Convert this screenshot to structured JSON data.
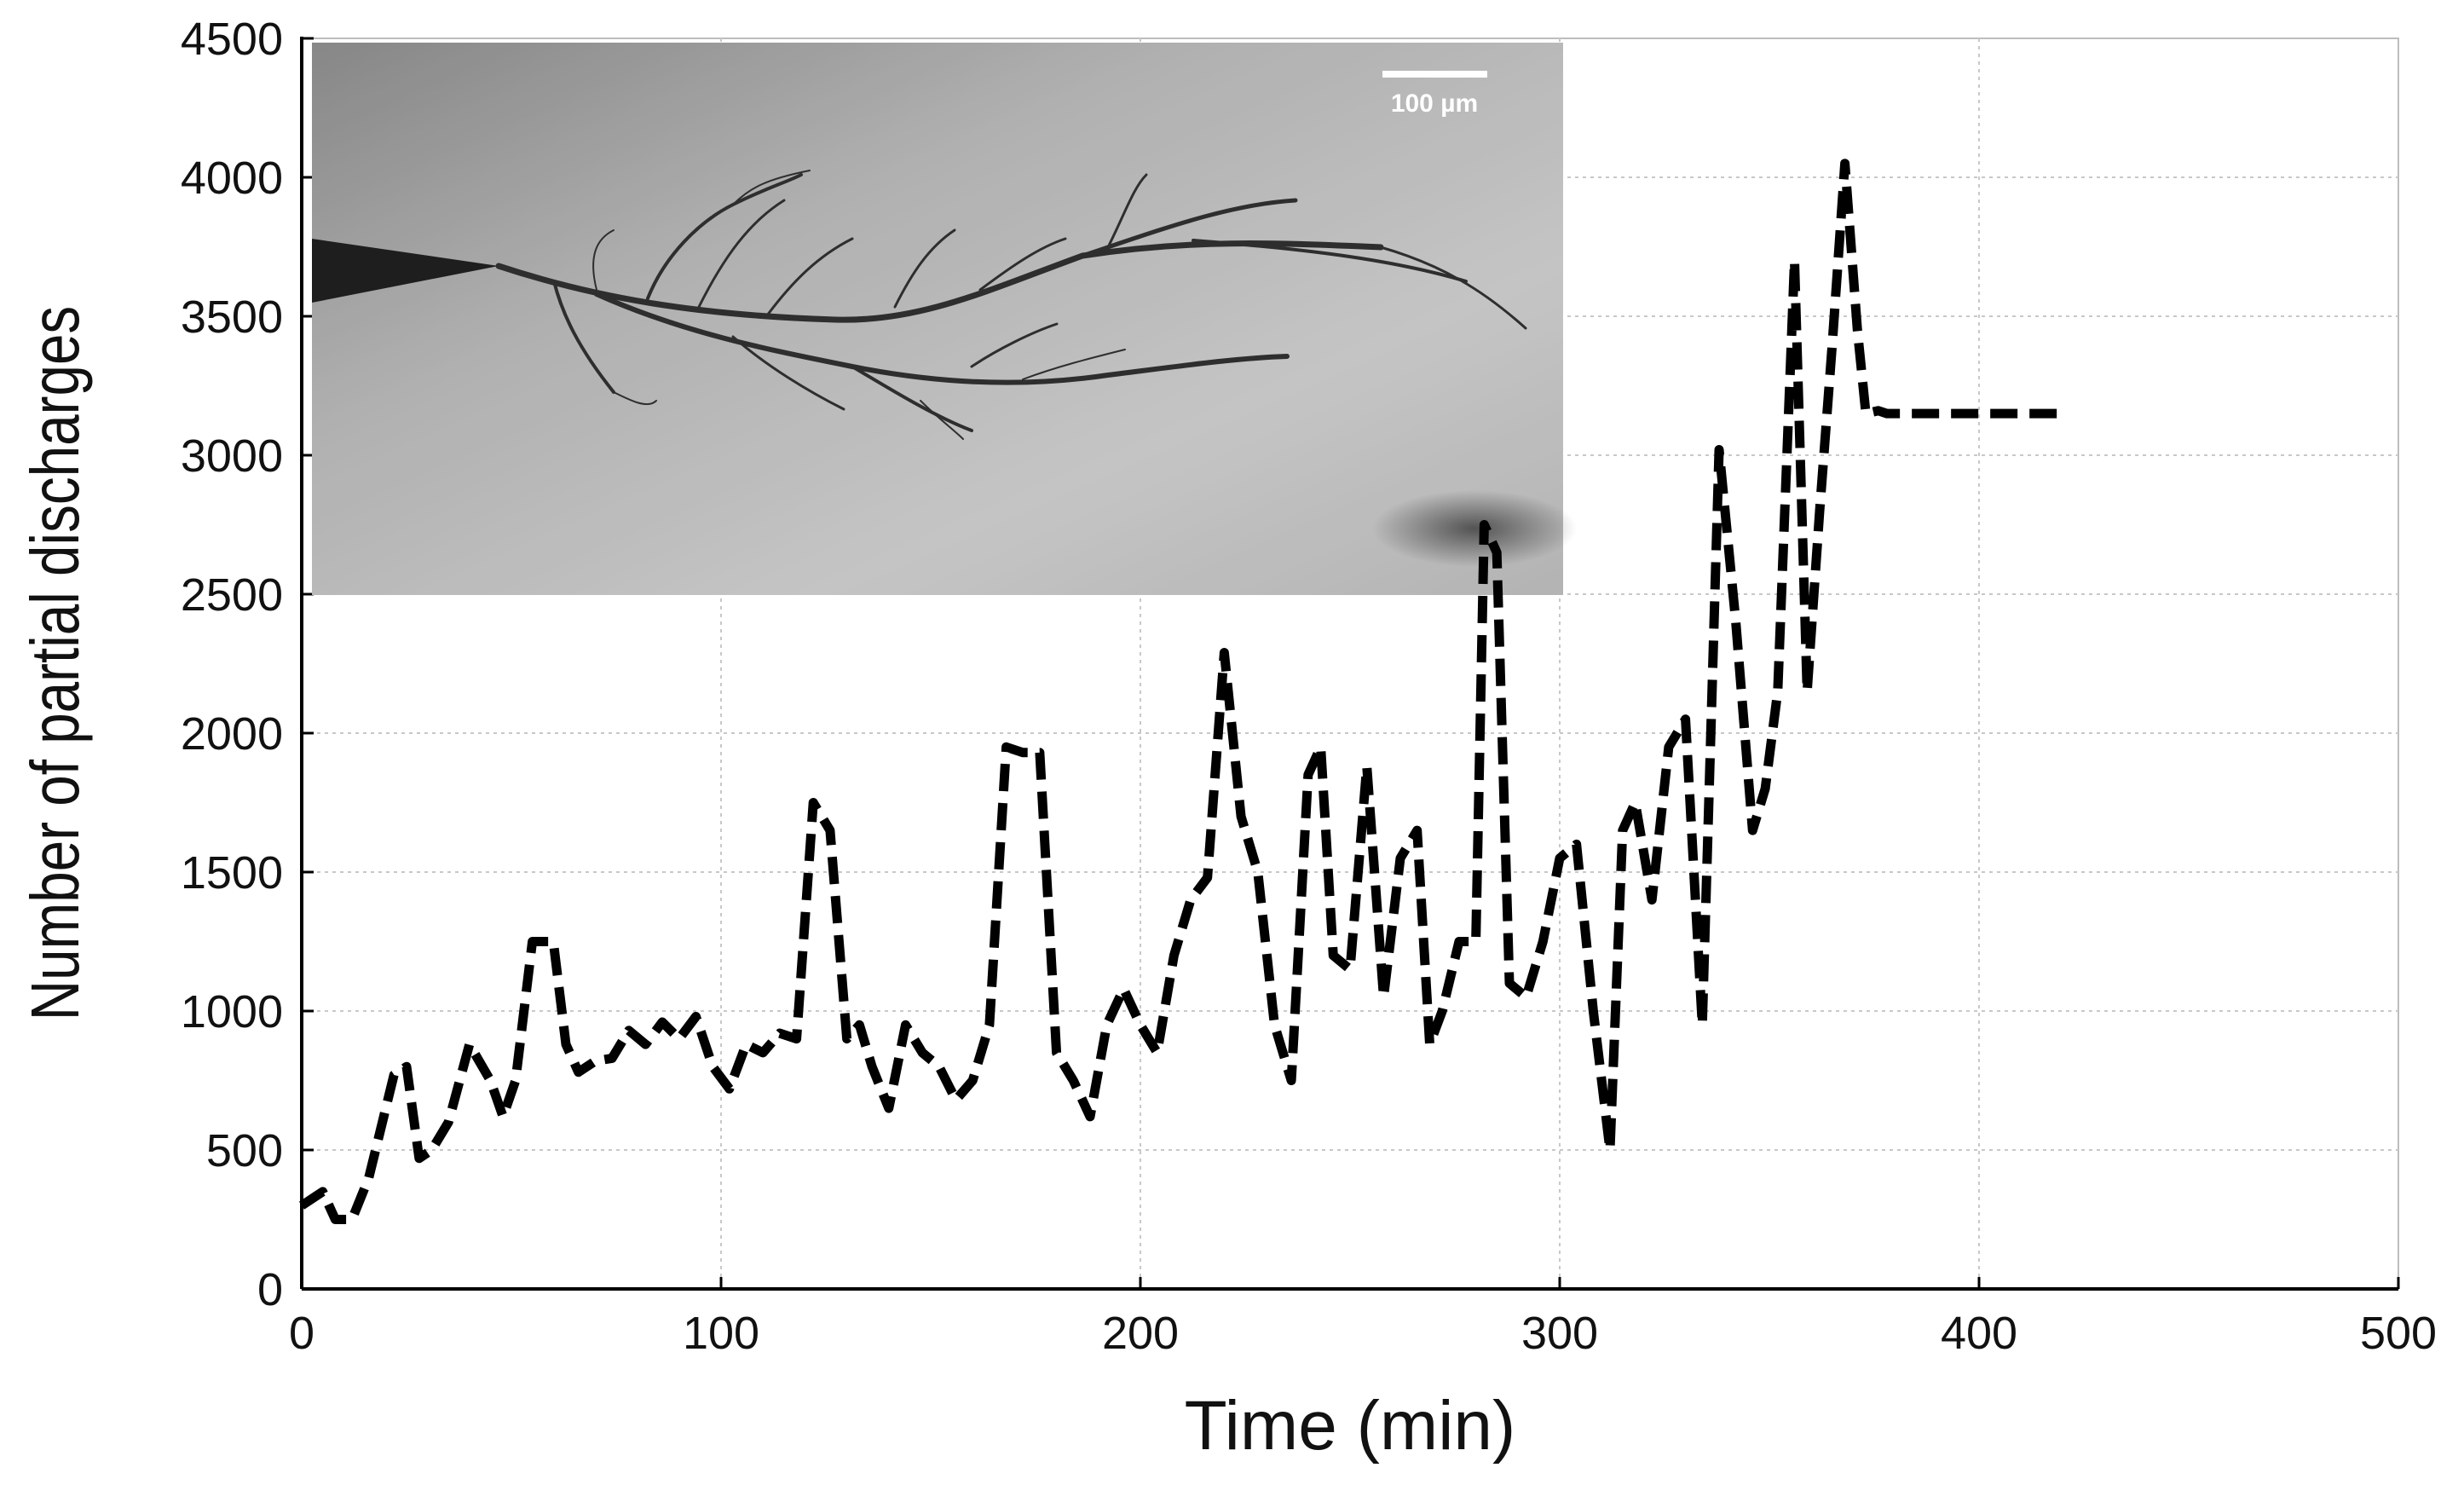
{
  "chart_data": {
    "type": "line",
    "xlabel": "Time (min)",
    "ylabel": "Number of partial discharges",
    "xlim": [
      0,
      500
    ],
    "ylim": [
      0,
      4500
    ],
    "xticks": [
      0,
      100,
      200,
      300,
      400,
      500
    ],
    "yticks": [
      0,
      500,
      1000,
      1500,
      2000,
      2500,
      3000,
      3500,
      4000,
      4500
    ],
    "grid": true,
    "line_style": "dashed",
    "line_color": "#000000",
    "series": [
      {
        "x": [
          0,
          5,
          8,
          12,
          16,
          22,
          25,
          28,
          31,
          35,
          40,
          45,
          48,
          51,
          55,
          60,
          63,
          66,
          70,
          74,
          78,
          82,
          86,
          90,
          94,
          98,
          102,
          106,
          110,
          114,
          118,
          122,
          126,
          130,
          133,
          136,
          140,
          144,
          148,
          152,
          156,
          160,
          164,
          168,
          172,
          176,
          180,
          184,
          188,
          192,
          196,
          200,
          204,
          208,
          212,
          216,
          220,
          224,
          228,
          232,
          236,
          240,
          243,
          246,
          250,
          254,
          258,
          262,
          266,
          269,
          272,
          276,
          280,
          282,
          285,
          288,
          292,
          296,
          300,
          304,
          308,
          312,
          315,
          318,
          322,
          326,
          330,
          334,
          338,
          342,
          346,
          349,
          352,
          356,
          359,
          362,
          365,
          368,
          371,
          373,
          376,
          378,
          381,
          384,
          388,
          391,
          394,
          397,
          400,
          404,
          408,
          412,
          415,
          418,
          421
        ],
        "y": [
          300,
          350,
          250,
          250,
          400,
          770,
          800,
          470,
          500,
          600,
          880,
          750,
          620,
          750,
          1250,
          1250,
          880,
          780,
          820,
          830,
          930,
          880,
          960,
          900,
          980,
          800,
          720,
          880,
          850,
          920,
          900,
          1750,
          1650,
          900,
          950,
          800,
          650,
          950,
          850,
          800,
          680,
          750,
          950,
          1950,
          1930,
          1930,
          850,
          750,
          620,
          950,
          1080,
          950,
          850,
          1200,
          1400,
          1480,
          2290,
          1700,
          1500,
          950,
          750,
          1850,
          1950,
          1200,
          1150,
          1880,
          1050,
          1550,
          1650,
          880,
          1000,
          1250,
          1250,
          2750,
          2650,
          1100,
          1050,
          1250,
          1550,
          1600,
          1000,
          500,
          1650,
          1750,
          1400,
          1950,
          2050,
          950,
          3020,
          2400,
          1650,
          1800,
          2150,
          3700,
          2150,
          2800,
          3400,
          4050,
          3450,
          3150,
          3160,
          3150,
          3150,
          3150,
          3150,
          3150,
          3150,
          3150,
          3150,
          3150,
          3150,
          3150,
          3150,
          3150,
          3150
        ]
      }
    ]
  },
  "inset": {
    "scale_bar_label": "100 µm",
    "image_kind": "grayscale micrograph of electrical tree"
  }
}
